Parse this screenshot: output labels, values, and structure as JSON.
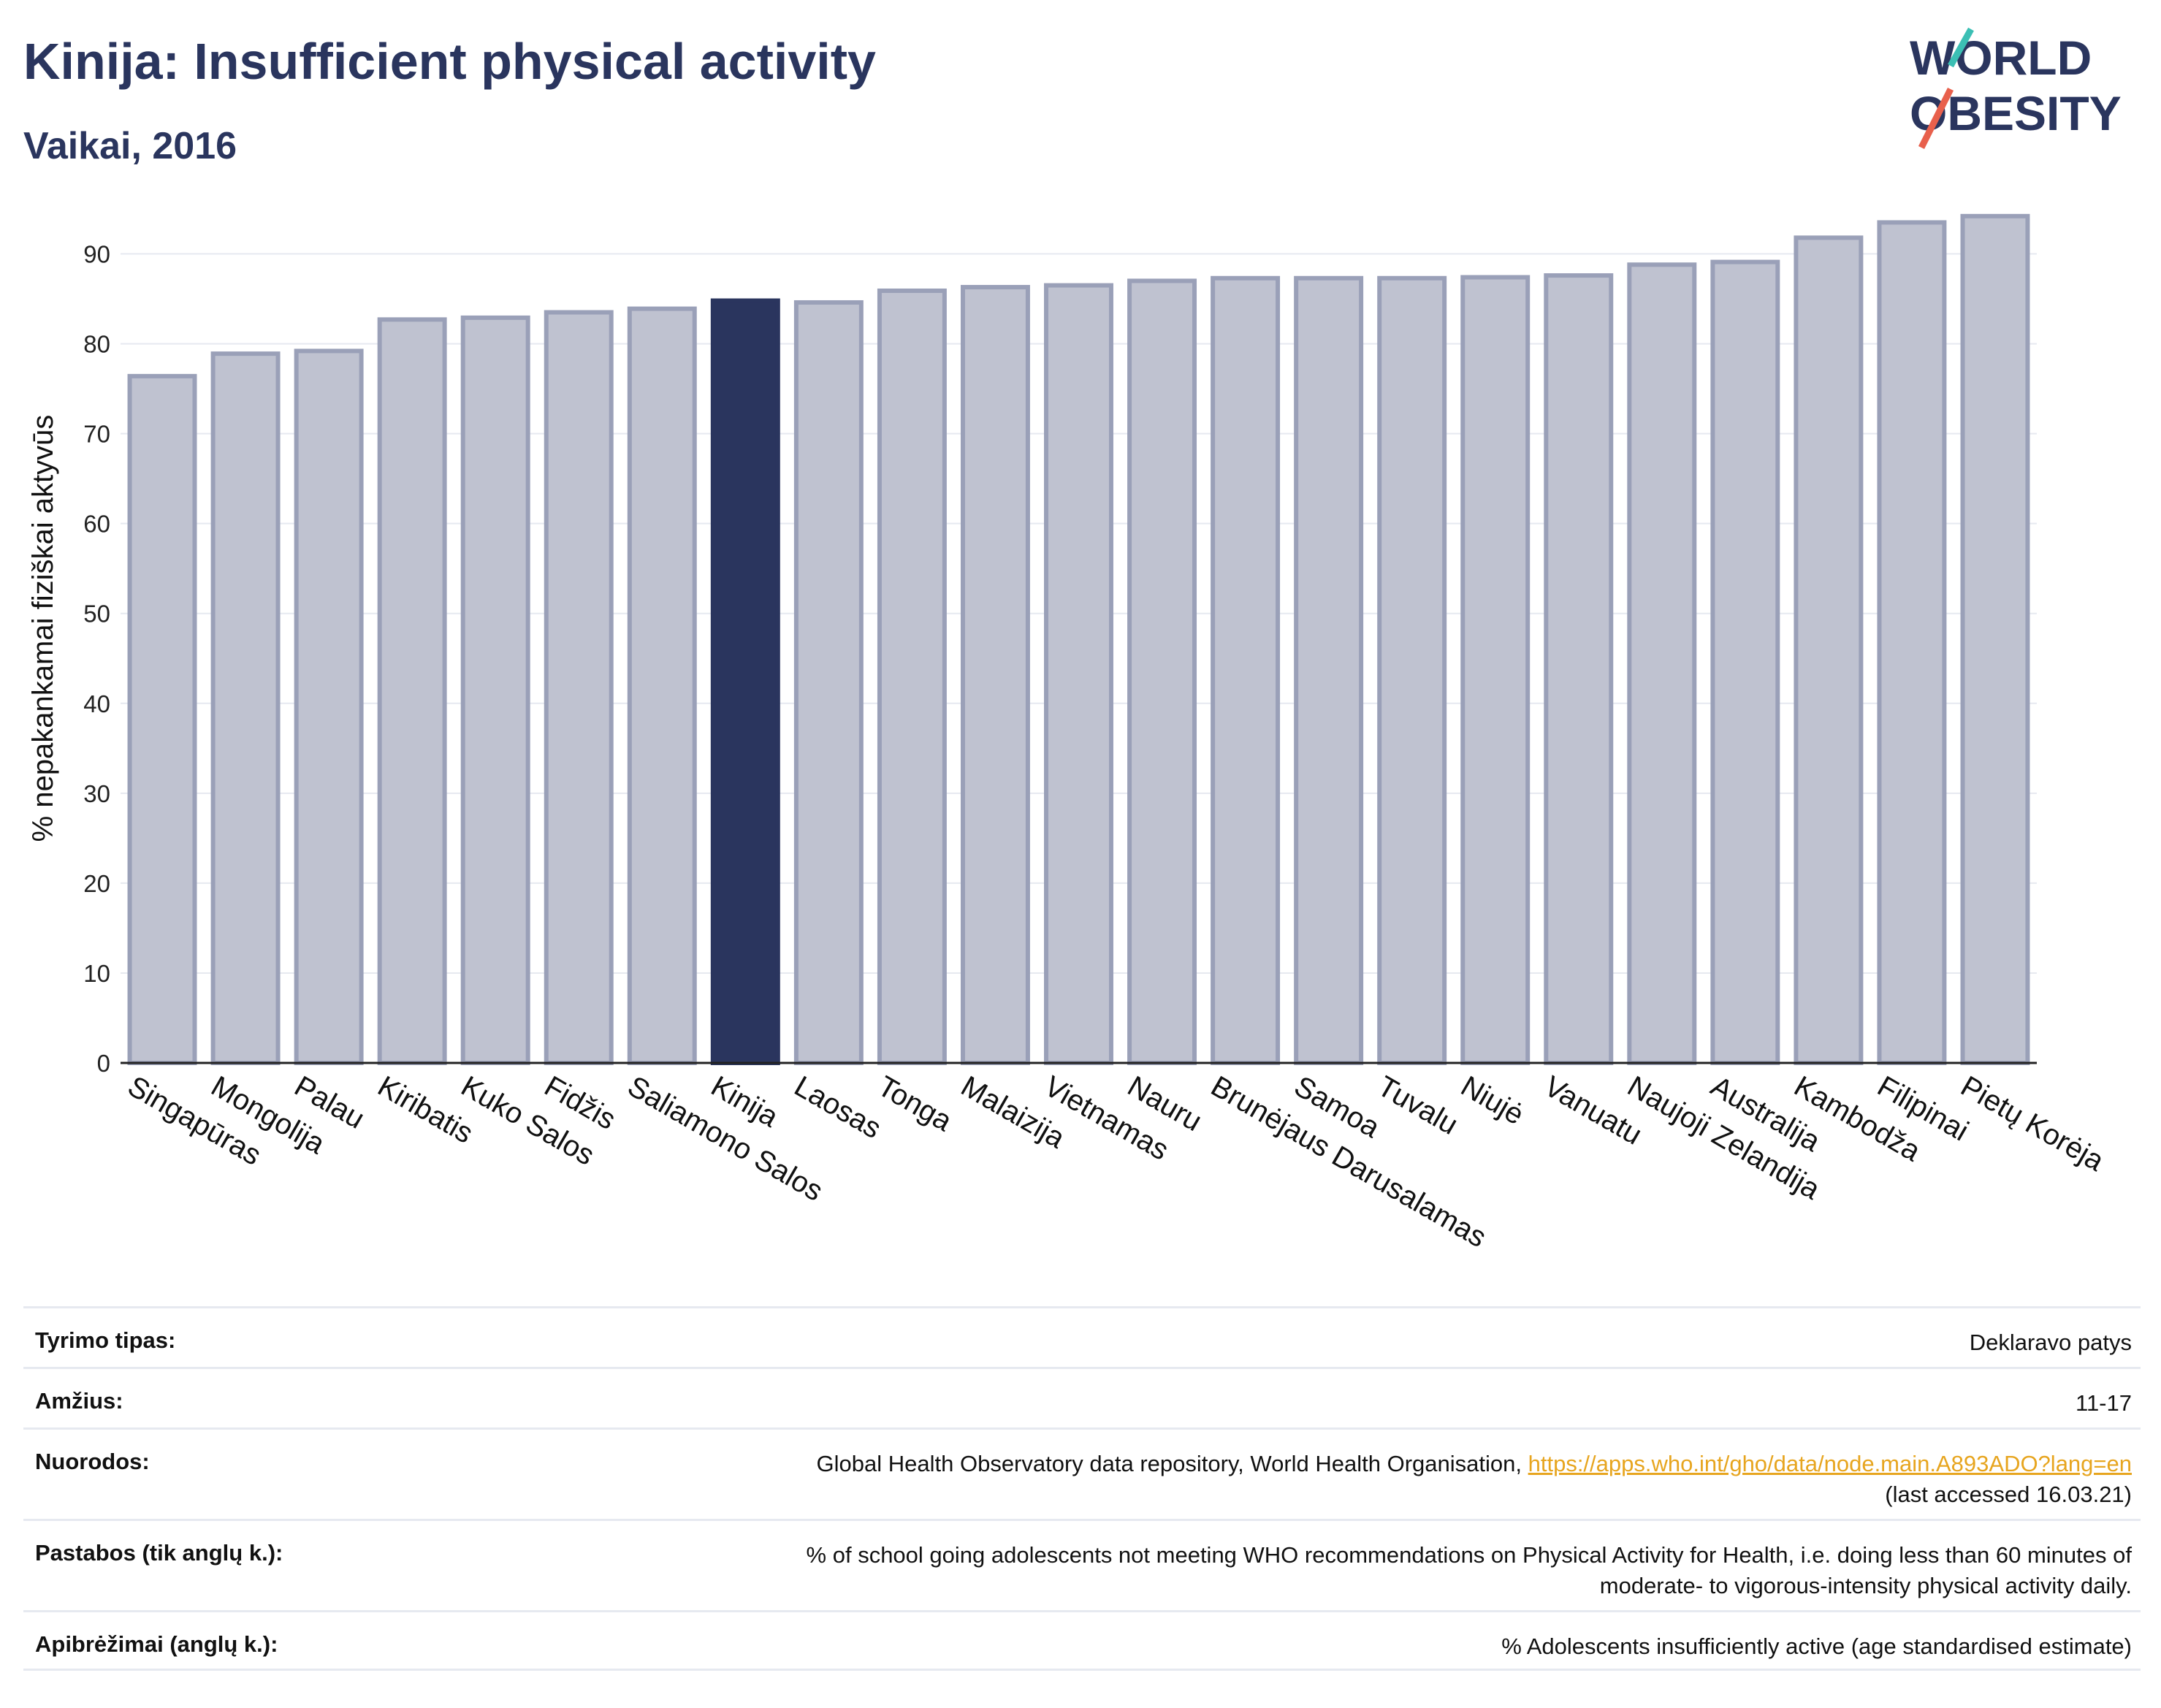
{
  "header": {
    "title": "Kinija: Insufficient physical activity",
    "subtitle": "Vaikai, 2016"
  },
  "logo": {
    "line1": "WORLD",
    "line2": "OBESITY",
    "colors": [
      "#2a355e",
      "#3bbfb4",
      "#e8604c"
    ]
  },
  "colors": {
    "highlight": "#2a355e",
    "bar_fill": "#bfc2d0",
    "bar_edge": "#9aa0b8",
    "axis": "#222222",
    "grid": "#e6e9f0"
  },
  "chart_data": {
    "type": "bar",
    "ylabel": "% nepakankamai fiziškai aktyvūs",
    "ylim": [
      0,
      95
    ],
    "yticks": [
      0,
      10,
      20,
      30,
      40,
      50,
      60,
      70,
      80,
      90
    ],
    "grid": true,
    "highlight": "Kinija",
    "categories": [
      "Singapūras",
      "Mongolija",
      "Palau",
      "Kiribatis",
      "Kuko Salos",
      "Fidžis",
      "Saliamono Salos",
      "Kinija",
      "Laosas",
      "Tonga",
      "Malaizija",
      "Vietnamas",
      "Nauru",
      "Brunėjaus Darusalamas",
      "Samoa",
      "Tuvalu",
      "Niujė",
      "Vanuatu",
      "Naujoji Zelandija",
      "Australija",
      "Kambodža",
      "Filipinai",
      "Pietų Korėja"
    ],
    "values": [
      76.4,
      78.9,
      79.2,
      82.7,
      82.9,
      83.5,
      83.9,
      84.8,
      84.6,
      85.9,
      86.3,
      86.5,
      87.0,
      87.3,
      87.3,
      87.3,
      87.4,
      87.6,
      88.8,
      89.1,
      91.8,
      93.5,
      94.2
    ]
  },
  "meta": [
    {
      "key": "Tyrimo tipas:",
      "value": "Deklaravo patys"
    },
    {
      "key": "Amžius:",
      "value": "11-17"
    },
    {
      "key": "Nuorodos:",
      "value_text": "Global Health Observatory data repository, World Health Organisation, ",
      "link": "https://apps.who.int/gho/data/node.main.A893ADO?lang=en",
      "value_suffix": "(last accessed 16.03.21)"
    },
    {
      "key": "Pastabos (tik anglų k.):",
      "value_line1": "% of school going adolescents not meeting WHO recommendations on Physical Activity for Health, i.e. doing less than 60 minutes of",
      "value_line2": "moderate- to vigorous-intensity physical activity daily."
    },
    {
      "key": "Apibrėžimai (anglų k.):",
      "value": "% Adolescents insufficiently active (age standardised estimate)"
    }
  ]
}
